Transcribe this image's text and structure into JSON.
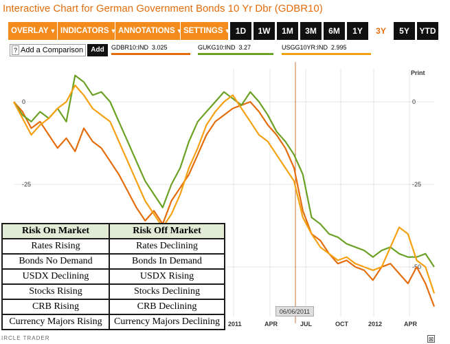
{
  "page": {
    "title": "Interactive Chart for German Government Bonds 10 Yr Dbr (GDBR10)"
  },
  "toolbar": {
    "menus": [
      {
        "label": "OVERLAY",
        "arrow": "▼"
      },
      {
        "label": "INDICATORS",
        "arrow": "▼"
      },
      {
        "label": "ANNOTATIONS",
        "arrow": "▼"
      },
      {
        "label": "SETTINGS",
        "arrow": "▼"
      }
    ],
    "ranges": [
      "1D",
      "1W",
      "1M",
      "3M",
      "6M",
      "1Y",
      "3Y",
      "5Y",
      "YTD"
    ],
    "active_range": "3Y"
  },
  "compare": {
    "icon": "?",
    "label": "Add a Comparison",
    "add_label": "Add"
  },
  "legend": [
    {
      "name": "GDBR10:IND",
      "value": "3.025",
      "color": "#e46c0a"
    },
    {
      "name": "GUKG10:IND",
      "value": "3.27",
      "color": "#6aa122"
    },
    {
      "name": "USGG10YR:IND",
      "value": "2.995",
      "color": "#f5a00f"
    }
  ],
  "print_label": "Print",
  "date_tooltip": "06/06/2011",
  "close_icon_label": "⊠",
  "watermark": "IRCLE TRADER",
  "x_labels": [
    "2011",
    "APR",
    "JUL",
    "OCT",
    "2012",
    "APR"
  ],
  "chart_data": {
    "type": "line",
    "y_ticks": [
      "0",
      "-25",
      "-50"
    ],
    "ylim": [
      -65,
      10
    ],
    "x_labels": [
      "2011",
      "APR",
      "JUL",
      "OCT",
      "2012",
      "APR"
    ],
    "series": [
      {
        "name": "GDBR10:IND",
        "color": "#e46c0a",
        "values": [
          0,
          -3,
          -8,
          -6,
          -10,
          -14,
          -11,
          -15,
          -8,
          -12,
          -14,
          -18,
          -22,
          -27,
          -32,
          -36,
          -33,
          -37,
          -30,
          -26,
          -22,
          -16,
          -10,
          -6,
          -4,
          -2,
          -1,
          0,
          -3,
          -7,
          -10,
          -14,
          -20,
          -33,
          -40,
          -42,
          -46,
          -49,
          -48,
          -50,
          -51,
          -54,
          -50,
          -49,
          -52,
          -55,
          -50,
          -55,
          -62
        ]
      },
      {
        "name": "GUKG10:IND",
        "color": "#6aa122",
        "values": [
          0,
          -4,
          -6,
          -3,
          -5,
          -2,
          -6,
          8,
          6,
          2,
          3,
          0,
          -6,
          -12,
          -18,
          -24,
          -28,
          -32,
          -25,
          -20,
          -12,
          -6,
          -3,
          0,
          3,
          1,
          -1,
          3,
          0,
          -4,
          -9,
          -12,
          -16,
          -22,
          -35,
          -37,
          -40,
          -41,
          -43,
          -44,
          -45,
          -47,
          -45,
          -44,
          -46,
          -47,
          -47,
          -46,
          -50
        ]
      },
      {
        "name": "USGG10YR:IND",
        "color": "#f5a00f",
        "values": [
          0,
          -5,
          -10,
          -7,
          -5,
          -2,
          0,
          5,
          2,
          -2,
          -4,
          -6,
          -12,
          -18,
          -24,
          -30,
          -34,
          -38,
          -34,
          -28,
          -20,
          -14,
          -7,
          -3,
          0,
          2,
          -2,
          -6,
          -10,
          -12,
          -16,
          -20,
          -24,
          -35,
          -40,
          -44,
          -46,
          -48,
          -47,
          -49,
          -50,
          -51,
          -50,
          -44,
          -38,
          -40,
          -48,
          -50,
          -58
        ]
      }
    ]
  },
  "table": {
    "headers": [
      "Risk On Market",
      "Risk Off Market"
    ],
    "rows": [
      [
        "Rates Rising",
        "Rates Declining"
      ],
      [
        "Bonds No Demand",
        "Bonds In Demand"
      ],
      [
        "USDX Declining",
        "USDX Rising"
      ],
      [
        "Stocks Rising",
        "Stocks Declining"
      ],
      [
        "CRB Rising",
        "CRB Declining"
      ],
      [
        "Currency Majors Rising",
        "Currency Majors Declining"
      ]
    ]
  }
}
